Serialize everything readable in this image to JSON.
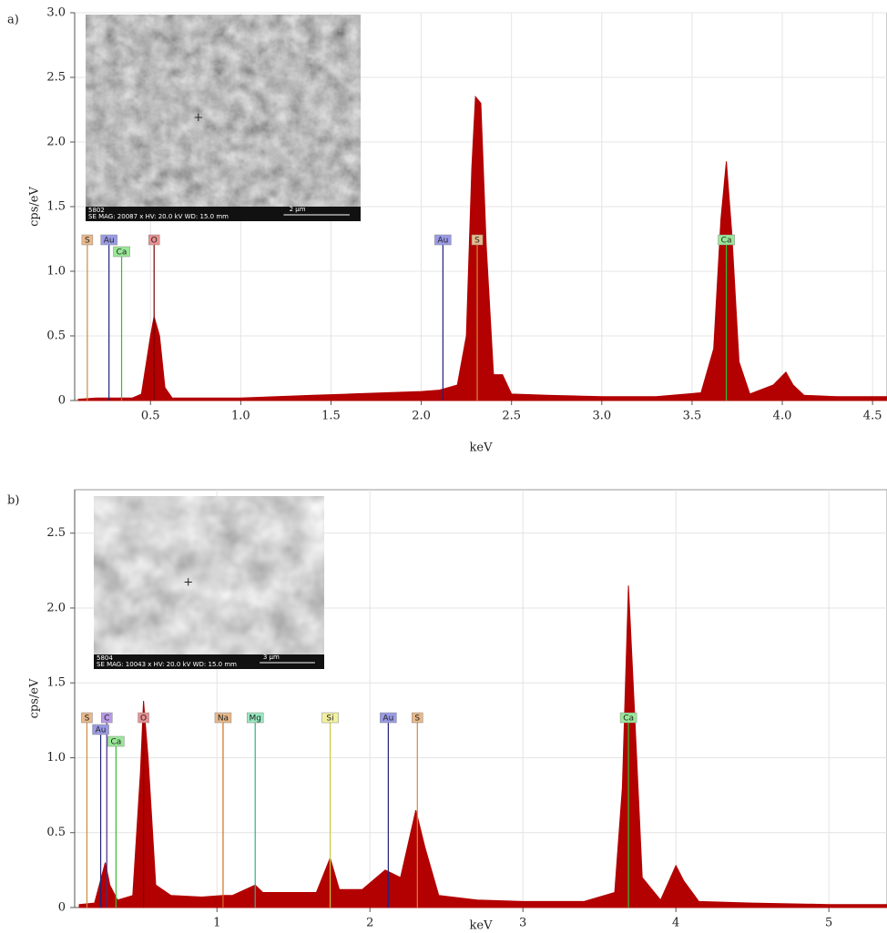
{
  "chart_data": [
    {
      "type": "area",
      "panel": "a)",
      "xlabel": "keV",
      "ylabel": "cps/eV",
      "color": "#b30000",
      "grid": true,
      "xlim": [
        0.08,
        4.58
      ],
      "ylim": [
        0,
        3.0
      ],
      "xticks": [
        0.5,
        {
          "value": 1,
          "label": "1.0"
        },
        1.5,
        {
          "value": 2,
          "label": "2.0"
        },
        2.5,
        {
          "value": 3,
          "label": "3.0"
        },
        3.5,
        {
          "value": 4,
          "label": "4.0"
        },
        4.5
      ],
      "yticks": [
        0,
        0.5,
        {
          "value": 1,
          "label": "1.0"
        },
        1.5,
        {
          "value": 2,
          "label": "2.0"
        },
        2.5,
        {
          "value": 3,
          "label": "3.0"
        }
      ],
      "x": [
        0.1,
        0.2,
        0.3,
        0.4,
        0.45,
        0.5,
        0.52,
        0.55,
        0.58,
        0.62,
        0.8,
        1.0,
        1.2,
        1.4,
        1.6,
        1.8,
        2.0,
        2.1,
        2.2,
        2.25,
        2.28,
        2.3,
        2.33,
        2.36,
        2.4,
        2.45,
        2.5,
        2.7,
        3.0,
        3.3,
        3.55,
        3.62,
        3.66,
        3.69,
        3.72,
        3.76,
        3.82,
        3.95,
        4.02,
        4.06,
        4.12,
        4.3,
        4.58
      ],
      "values": [
        0.01,
        0.02,
        0.02,
        0.02,
        0.05,
        0.5,
        0.65,
        0.5,
        0.1,
        0.02,
        0.02,
        0.02,
        0.03,
        0.04,
        0.05,
        0.06,
        0.07,
        0.08,
        0.12,
        0.5,
        1.8,
        2.35,
        2.3,
        1.2,
        0.2,
        0.2,
        0.05,
        0.04,
        0.03,
        0.03,
        0.06,
        0.4,
        1.4,
        1.85,
        1.3,
        0.3,
        0.05,
        0.12,
        0.22,
        0.12,
        0.04,
        0.03,
        0.03
      ],
      "markers": [
        {
          "label": "S",
          "x": 0.15,
          "color": "#e8b88a",
          "line": "#d08a40"
        },
        {
          "label": "Au",
          "x": 0.27,
          "color": "#9a9ae6",
          "line": "#22227a"
        },
        {
          "label": "Ca",
          "x": 0.34,
          "color": "#98e898",
          "line": "#30c030"
        },
        {
          "label": "O",
          "x": 0.52,
          "color": "#e89090",
          "line": "#7a0000"
        },
        {
          "label": "Au",
          "x": 2.12,
          "color": "#9a9ae6",
          "line": "#22227a"
        },
        {
          "label": "S",
          "x": 2.31,
          "color": "#e8b88a",
          "line": "#d08a40"
        },
        {
          "label": "Ca",
          "x": 3.69,
          "color": "#98e898",
          "line": "#30c030"
        }
      ],
      "inset": {
        "id": "5802",
        "info": "SE  MAG: 20087 x  HV: 20.0 kV  WD: 15.0 mm",
        "scale": "2 µm"
      }
    },
    {
      "type": "area",
      "panel": "b)",
      "xlabel": "keV",
      "ylabel": "cps/eV",
      "color": "#b30000",
      "grid": true,
      "xlim": [
        0.07,
        5.38
      ],
      "ylim": [
        0,
        2.79
      ],
      "xticks": [
        1,
        2,
        3,
        4,
        5
      ],
      "yticks": [
        0,
        0.5,
        {
          "value": 1,
          "label": "1.0"
        },
        1.5,
        {
          "value": 2,
          "label": "2.0"
        },
        2.5
      ],
      "x": [
        0.1,
        0.2,
        0.27,
        0.3,
        0.35,
        0.45,
        0.5,
        0.52,
        0.55,
        0.6,
        0.7,
        0.9,
        1.04,
        1.1,
        1.25,
        1.3,
        1.5,
        1.65,
        1.74,
        1.8,
        1.95,
        2.1,
        2.2,
        2.3,
        2.36,
        2.45,
        2.7,
        3.0,
        3.4,
        3.6,
        3.65,
        3.69,
        3.73,
        3.78,
        3.9,
        4.0,
        4.05,
        4.15,
        4.5,
        5.0,
        5.38
      ],
      "values": [
        0.02,
        0.03,
        0.3,
        0.15,
        0.05,
        0.08,
        0.9,
        1.38,
        1.0,
        0.15,
        0.08,
        0.07,
        0.08,
        0.08,
        0.15,
        0.1,
        0.1,
        0.1,
        0.33,
        0.12,
        0.12,
        0.25,
        0.2,
        0.65,
        0.4,
        0.08,
        0.05,
        0.04,
        0.04,
        0.1,
        0.8,
        2.15,
        1.3,
        0.2,
        0.05,
        0.28,
        0.18,
        0.04,
        0.03,
        0.02,
        0.02
      ],
      "markers": [
        {
          "label": "S",
          "x": 0.15,
          "color": "#e8b88a",
          "line": "#d08a40"
        },
        {
          "label": "C",
          "x": 0.28,
          "color": "#b89ae6",
          "line": "#4a2a8a"
        },
        {
          "label": "Au",
          "x": 0.24,
          "color": "#9a9ae6",
          "line": "#22227a"
        },
        {
          "label": "Ca",
          "x": 0.34,
          "color": "#98e898",
          "line": "#30c030"
        },
        {
          "label": "O",
          "x": 0.52,
          "color": "#e89090",
          "line": "#7a0000"
        },
        {
          "label": "Na",
          "x": 1.04,
          "color": "#e8b88a",
          "line": "#d07020"
        },
        {
          "label": "Mg",
          "x": 1.25,
          "color": "#98e8c0",
          "line": "#30b090"
        },
        {
          "label": "Si",
          "x": 1.74,
          "color": "#f0f0a0",
          "line": "#c8c840"
        },
        {
          "label": "Au",
          "x": 2.12,
          "color": "#9a9ae6",
          "line": "#22227a"
        },
        {
          "label": "S",
          "x": 2.31,
          "color": "#e8b88a",
          "line": "#d08a40"
        },
        {
          "label": "Ca",
          "x": 3.69,
          "color": "#98e898",
          "line": "#30c030"
        }
      ],
      "inset": {
        "id": "5804",
        "info": "SE  MAG: 10043 x  HV: 20.0 kV  WD: 15.0 mm",
        "scale": "3 µm"
      }
    }
  ]
}
